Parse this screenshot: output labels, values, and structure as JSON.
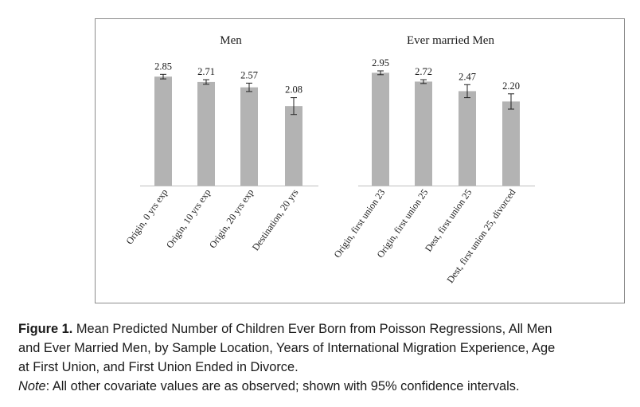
{
  "chart_data": {
    "type": "bar",
    "groups": [
      {
        "title": "Men",
        "categories": [
          "Origin, 0 yrs exp",
          "Origin, 10 yrs exp",
          "Origin, 20 yrs exp",
          "Destination, 20 yrs"
        ],
        "values": [
          2.85,
          2.71,
          2.57,
          2.08
        ],
        "value_labels": [
          "2.85",
          "2.71",
          "2.57",
          "2.08"
        ],
        "ci_low": [
          2.79,
          2.65,
          2.46,
          1.86
        ],
        "ci_high": [
          2.91,
          2.77,
          2.68,
          2.3
        ]
      },
      {
        "title": "Ever married Men",
        "categories": [
          "Origin, first union 23",
          "Origin, first union 25",
          "Dest, first union 25",
          "Dest, first union 25, divorced"
        ],
        "values": [
          2.95,
          2.72,
          2.47,
          2.2
        ],
        "value_labels": [
          "2.95",
          "2.72",
          "2.47",
          "2.20"
        ],
        "ci_low": [
          2.9,
          2.67,
          2.3,
          2.0
        ],
        "ci_high": [
          3.0,
          2.77,
          2.64,
          2.4
        ]
      }
    ],
    "ylim": [
      0,
      3.5
    ],
    "grid": false,
    "error_bars": "95% confidence intervals",
    "bar_color": "#b3b3b3"
  },
  "caption": {
    "figure_label": "Figure 1.",
    "line1": " Mean Predicted Number of Children Ever Born from Poisson Regressions, All Men",
    "line2": "and Ever Married Men, by Sample Location, Years of International Migration Experience, Age",
    "line3": "at First Union, and First Union Ended in Divorce.",
    "note_label": "Note",
    "note_text": ": All other covariate values are as observed; shown with 95% confidence intervals."
  }
}
